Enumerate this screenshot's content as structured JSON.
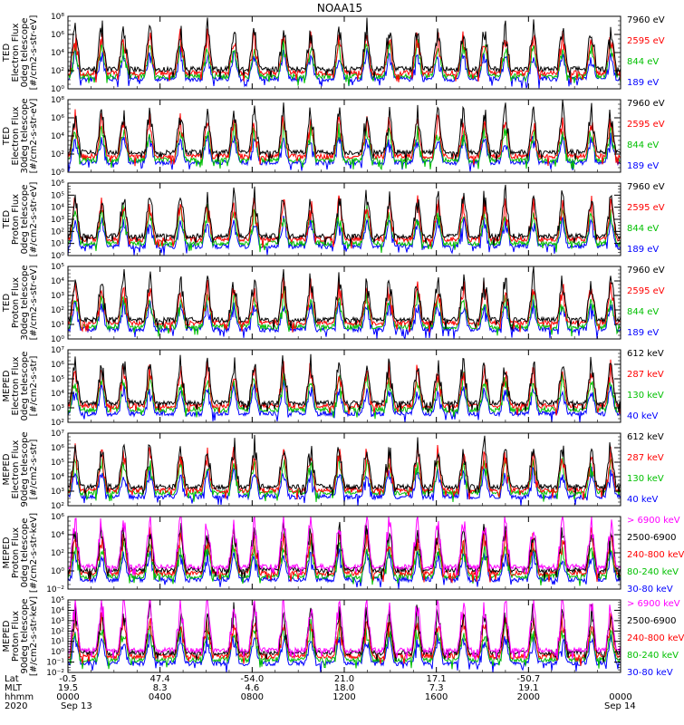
{
  "chart_data": {
    "type": "line",
    "title": "NOAA15",
    "panels": [
      {
        "ylabel": [
          "TED",
          "Electron Flux",
          "0deg telescope",
          "[#/cm2-s-str-eV]"
        ],
        "yticks": [
          "10⁰",
          "10²",
          "10⁴",
          "10⁶",
          "10⁸"
        ],
        "ylog": [
          0,
          8
        ],
        "legend": [
          {
            "label": "7960 eV",
            "color": "#000000"
          },
          {
            "label": "2595 eV",
            "color": "#ff0000"
          },
          {
            "label": "844 eV",
            "color": "#00c000"
          },
          {
            "label": "189 eV",
            "color": "#0000ff"
          }
        ]
      },
      {
        "ylabel": [
          "TED",
          "Electron Flux",
          "30deg telescope",
          "[#/cm2-s-str-eV]"
        ],
        "yticks": [
          "10⁰",
          "10²",
          "10⁴",
          "10⁶",
          "10⁸"
        ],
        "ylog": [
          0,
          8
        ],
        "legend": [
          {
            "label": "7960 eV",
            "color": "#000000"
          },
          {
            "label": "2595 eV",
            "color": "#ff0000"
          },
          {
            "label": "844 eV",
            "color": "#00c000"
          },
          {
            "label": "189 eV",
            "color": "#0000ff"
          }
        ]
      },
      {
        "ylabel": [
          "TED",
          "Proton Flux",
          "0deg telescope",
          "[#/cm2-s-str-eV]"
        ],
        "yticks": [
          "10⁰",
          "10¹",
          "10²",
          "10³",
          "10⁴",
          "10⁵",
          "10⁶"
        ],
        "ylog": [
          0,
          6
        ],
        "legend": [
          {
            "label": "7960 eV",
            "color": "#000000"
          },
          {
            "label": "2595 eV",
            "color": "#ff0000"
          },
          {
            "label": "844 eV",
            "color": "#00c000"
          },
          {
            "label": "189 eV",
            "color": "#0000ff"
          }
        ]
      },
      {
        "ylabel": [
          "TED",
          "Proton Flux",
          "30deg telescope",
          "[#/cm2-s-str-eV]"
        ],
        "yticks": [
          "10⁰",
          "10¹",
          "10²",
          "10³",
          "10⁴",
          "10⁵"
        ],
        "ylog": [
          0,
          5
        ],
        "legend": [
          {
            "label": "7960 eV",
            "color": "#000000"
          },
          {
            "label": "2595 eV",
            "color": "#ff0000"
          },
          {
            "label": "844 eV",
            "color": "#00c000"
          },
          {
            "label": "189 eV",
            "color": "#0000ff"
          }
        ]
      },
      {
        "ylabel": [
          "MEPED",
          "Electron Flux",
          "0deg telescope",
          "[#/cm2-s-str]"
        ],
        "yticks": [
          "10²",
          "10³",
          "10⁴",
          "10⁵",
          "10⁶",
          "10⁷"
        ],
        "ylog": [
          2,
          7
        ],
        "legend": [
          {
            "label": "612 keV",
            "color": "#000000"
          },
          {
            "label": "287 keV",
            "color": "#ff0000"
          },
          {
            "label": "130 keV",
            "color": "#00c000"
          },
          {
            "label": "40 keV",
            "color": "#0000ff"
          }
        ]
      },
      {
        "ylabel": [
          "MEPED",
          "Electron Flux",
          "90deg telescope",
          "[#/cm2-s-str]"
        ],
        "yticks": [
          "10²",
          "10³",
          "10⁴",
          "10⁵",
          "10⁶",
          "10⁷"
        ],
        "ylog": [
          2,
          7
        ],
        "legend": [
          {
            "label": "612 keV",
            "color": "#000000"
          },
          {
            "label": "287 keV",
            "color": "#ff0000"
          },
          {
            "label": "130 keV",
            "color": "#00c000"
          },
          {
            "label": "40 keV",
            "color": "#0000ff"
          }
        ]
      },
      {
        "ylabel": [
          "MEPED",
          "Proton Flux",
          "0deg telescope",
          "[#/cm2-s-str-keV]"
        ],
        "yticks": [
          "10⁻²",
          "10⁰",
          "10²",
          "10⁴",
          "10⁶"
        ],
        "ylog": [
          -2,
          6
        ],
        "legend": [
          {
            "label": "> 6900 keV",
            "color": "#ff00ff"
          },
          {
            "label": "2500-6900",
            "color": "#000000"
          },
          {
            "label": "240-800 keV",
            "color": "#ff0000"
          },
          {
            "label": "80-240 keV",
            "color": "#00c000"
          },
          {
            "label": "30-80 keV",
            "color": "#0000ff"
          }
        ]
      },
      {
        "ylabel": [
          "MEPED",
          "Proton Flux",
          "90deg telescope",
          "[#/cm2-s-str-keV]"
        ],
        "yticks": [
          "10⁻²",
          "10⁻¹",
          "10⁰",
          "10¹",
          "10²",
          "10³",
          "10⁴",
          "10⁵"
        ],
        "ylog": [
          -2,
          5
        ],
        "legend": [
          {
            "label": "> 6900 keV",
            "color": "#ff00ff"
          },
          {
            "label": "2500-6900",
            "color": "#000000"
          },
          {
            "label": "240-800 keV",
            "color": "#ff0000"
          },
          {
            "label": "80-240 keV",
            "color": "#00c000"
          },
          {
            "label": "30-80 keV",
            "color": "#0000ff"
          }
        ]
      }
    ],
    "xaxis": {
      "row_labels": [
        "Lat",
        "MLT",
        "hhmm",
        "2020"
      ],
      "ticks": [
        {
          "lat": "-0.5",
          "mlt": "19.5",
          "hhmm": "0000"
        },
        {
          "lat": "47.4",
          "mlt": "8.3",
          "hhmm": "0400"
        },
        {
          "lat": "-54.0",
          "mlt": "4.6",
          "hhmm": "0800"
        },
        {
          "lat": "21.0",
          "mlt": "18.0",
          "hhmm": "1200"
        },
        {
          "lat": "17.1",
          "mlt": "7.3",
          "hhmm": "1600"
        },
        {
          "lat": "-50.7",
          "mlt": "19.1",
          "hhmm": "2000"
        },
        {
          "lat": "",
          "mlt": "",
          "hhmm": "0000"
        }
      ],
      "date_start": "Sep 13",
      "date_end": "Sep 14"
    }
  }
}
